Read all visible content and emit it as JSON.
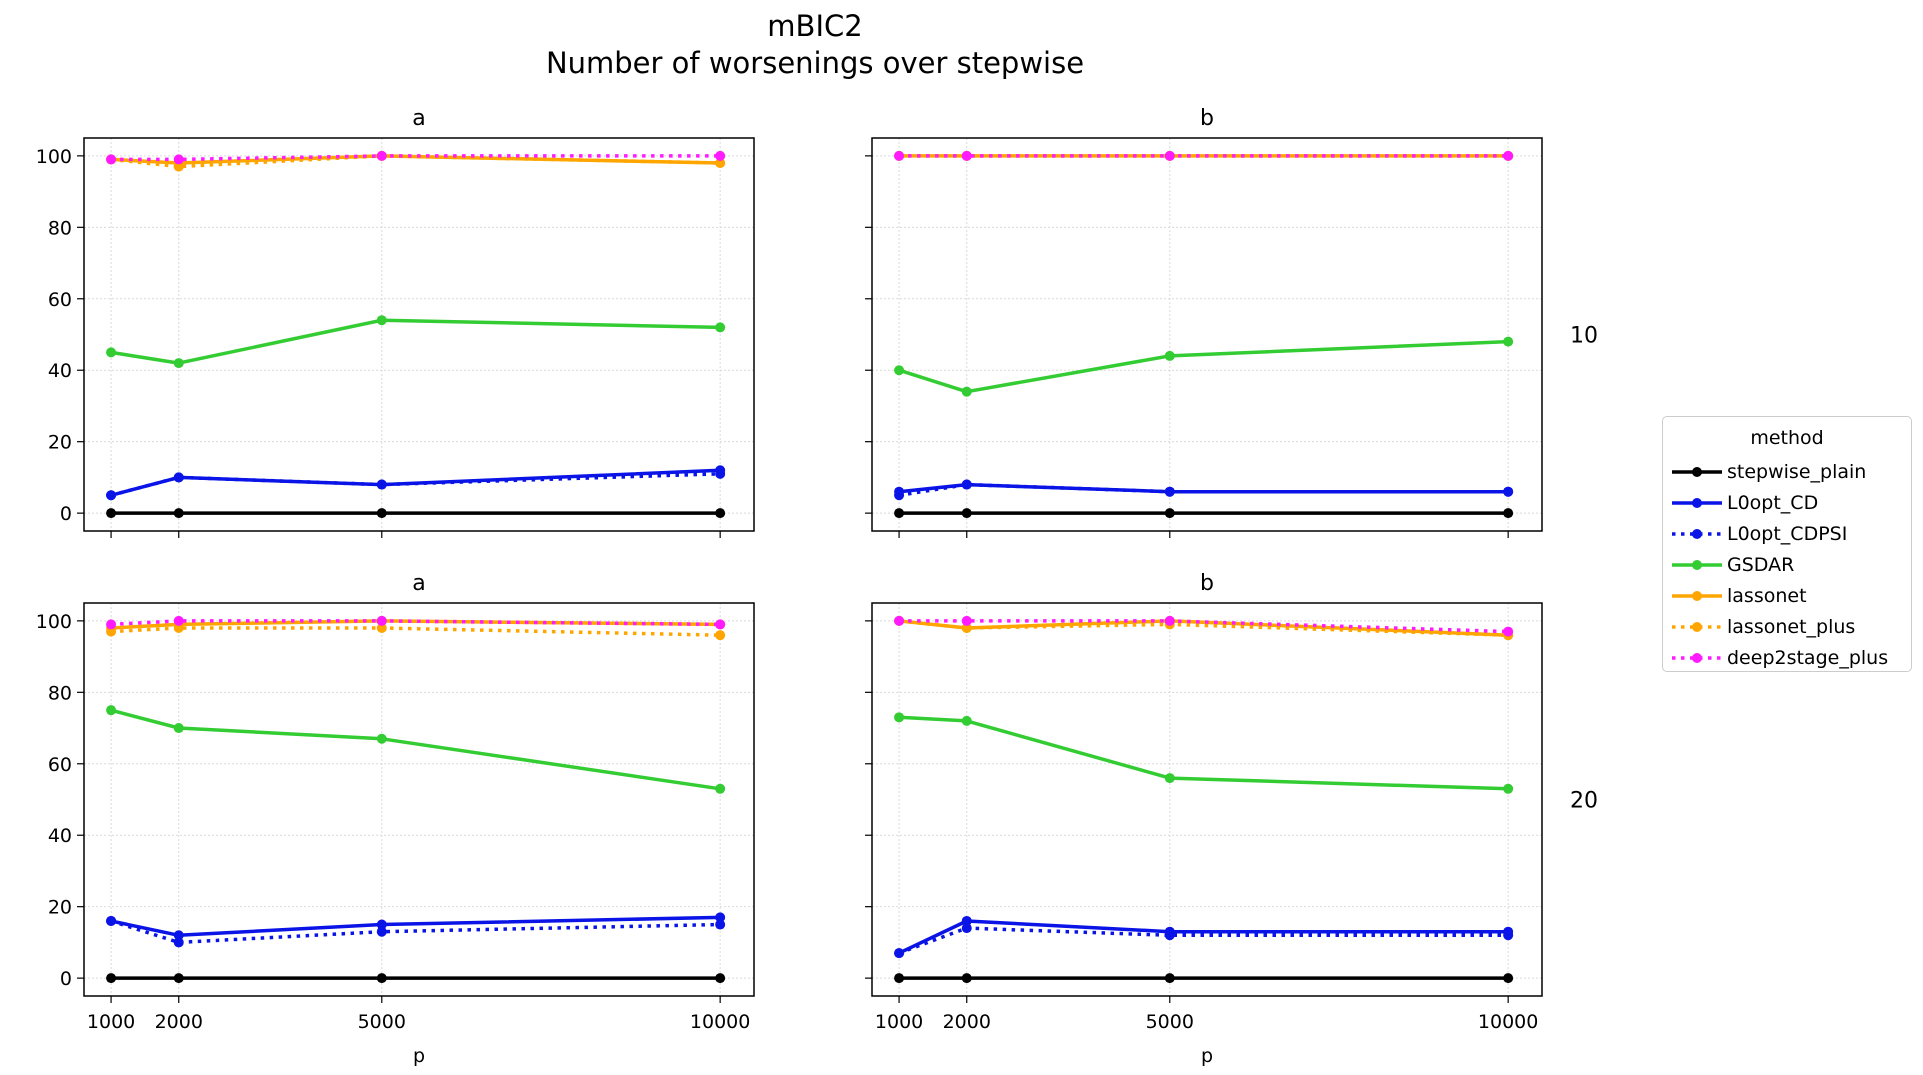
{
  "figure": {
    "title_line1": "mBIC2",
    "title_line2": "Number of worsenings over stepwise"
  },
  "colors": {
    "stepwise_plain": "#000000",
    "L0opt_CD": "#0a14e6",
    "L0opt_CDPSI": "#0a14e6",
    "GSDAR": "#33cc33",
    "lassonet": "#ffa500",
    "lassonet_plus": "#ffa500",
    "deep2stage_plus": "#ff1aff"
  },
  "legend": {
    "title": "method",
    "items": [
      {
        "label": "stepwise_plain",
        "style": "solid"
      },
      {
        "label": "L0opt_CD",
        "style": "solid"
      },
      {
        "label": "L0opt_CDPSI",
        "style": "dotted"
      },
      {
        "label": "GSDAR",
        "style": "solid"
      },
      {
        "label": "lassonet",
        "style": "solid"
      },
      {
        "label": "lassonet_plus",
        "style": "dotted"
      },
      {
        "label": "deep2stage_plus",
        "style": "dotted"
      }
    ]
  },
  "chart_data": [
    {
      "type": "line",
      "title": "a",
      "row_label": "10",
      "xlabel": "",
      "ylabel": "",
      "x": [
        1000,
        2000,
        5000,
        10000
      ],
      "xlim": [
        600,
        10500
      ],
      "ylim": [
        -5,
        105
      ],
      "yticks": [
        0,
        20,
        40,
        60,
        80,
        100
      ],
      "grid": true,
      "series": [
        {
          "name": "stepwise_plain",
          "style": "solid",
          "values": [
            0,
            0,
            0,
            0
          ]
        },
        {
          "name": "L0opt_CD",
          "style": "solid",
          "values": [
            5,
            10,
            8,
            12
          ]
        },
        {
          "name": "L0opt_CDPSI",
          "style": "dotted",
          "values": [
            5,
            10,
            8,
            11
          ]
        },
        {
          "name": "GSDAR",
          "style": "solid",
          "values": [
            45,
            42,
            54,
            52
          ]
        },
        {
          "name": "lassonet",
          "style": "solid",
          "values": [
            99,
            98,
            100,
            98
          ]
        },
        {
          "name": "lassonet_plus",
          "style": "dotted",
          "values": [
            99,
            97,
            100,
            98
          ]
        },
        {
          "name": "deep2stage_plus",
          "style": "dotted",
          "values": [
            99,
            99,
            100,
            100
          ]
        }
      ]
    },
    {
      "type": "line",
      "title": "b",
      "row_label": "10",
      "xlabel": "",
      "ylabel": "",
      "x": [
        1000,
        2000,
        5000,
        10000
      ],
      "xlim": [
        600,
        10500
      ],
      "ylim": [
        -5,
        105
      ],
      "yticks": [
        0,
        20,
        40,
        60,
        80,
        100
      ],
      "grid": true,
      "series": [
        {
          "name": "stepwise_plain",
          "style": "solid",
          "values": [
            0,
            0,
            0,
            0
          ]
        },
        {
          "name": "L0opt_CD",
          "style": "solid",
          "values": [
            6,
            8,
            6,
            6
          ]
        },
        {
          "name": "L0opt_CDPSI",
          "style": "dotted",
          "values": [
            5,
            8,
            6,
            6
          ]
        },
        {
          "name": "GSDAR",
          "style": "solid",
          "values": [
            40,
            34,
            44,
            48
          ]
        },
        {
          "name": "lassonet",
          "style": "solid",
          "values": [
            100,
            100,
            100,
            100
          ]
        },
        {
          "name": "lassonet_plus",
          "style": "dotted",
          "values": [
            100,
            100,
            100,
            100
          ]
        },
        {
          "name": "deep2stage_plus",
          "style": "dotted",
          "values": [
            100,
            100,
            100,
            100
          ]
        }
      ]
    },
    {
      "type": "line",
      "title": "a",
      "row_label": "20",
      "xlabel": "p",
      "ylabel": "",
      "x": [
        1000,
        2000,
        5000,
        10000
      ],
      "xlim": [
        600,
        10500
      ],
      "ylim": [
        -5,
        105
      ],
      "yticks": [
        0,
        20,
        40,
        60,
        80,
        100
      ],
      "grid": true,
      "series": [
        {
          "name": "stepwise_plain",
          "style": "solid",
          "values": [
            0,
            0,
            0,
            0
          ]
        },
        {
          "name": "L0opt_CD",
          "style": "solid",
          "values": [
            16,
            12,
            15,
            17
          ]
        },
        {
          "name": "L0opt_CDPSI",
          "style": "dotted",
          "values": [
            16,
            10,
            13,
            15
          ]
        },
        {
          "name": "GSDAR",
          "style": "solid",
          "values": [
            75,
            70,
            67,
            53
          ]
        },
        {
          "name": "lassonet",
          "style": "solid",
          "values": [
            98,
            99,
            100,
            99
          ]
        },
        {
          "name": "lassonet_plus",
          "style": "dotted",
          "values": [
            97,
            98,
            98,
            96
          ]
        },
        {
          "name": "deep2stage_plus",
          "style": "dotted",
          "values": [
            99,
            100,
            100,
            99
          ]
        }
      ]
    },
    {
      "type": "line",
      "title": "b",
      "row_label": "20",
      "xlabel": "p",
      "ylabel": "",
      "x": [
        1000,
        2000,
        5000,
        10000
      ],
      "xlim": [
        600,
        10500
      ],
      "ylim": [
        -5,
        105
      ],
      "yticks": [
        0,
        20,
        40,
        60,
        80,
        100
      ],
      "grid": true,
      "series": [
        {
          "name": "stepwise_plain",
          "style": "solid",
          "values": [
            0,
            0,
            0,
            0
          ]
        },
        {
          "name": "L0opt_CD",
          "style": "solid",
          "values": [
            7,
            16,
            13,
            13
          ]
        },
        {
          "name": "L0opt_CDPSI",
          "style": "dotted",
          "values": [
            7,
            14,
            12,
            12
          ]
        },
        {
          "name": "GSDAR",
          "style": "solid",
          "values": [
            73,
            72,
            56,
            53
          ]
        },
        {
          "name": "lassonet",
          "style": "solid",
          "values": [
            100,
            98,
            100,
            96
          ]
        },
        {
          "name": "lassonet_plus",
          "style": "dotted",
          "values": [
            100,
            98,
            99,
            96
          ]
        },
        {
          "name": "deep2stage_plus",
          "style": "dotted",
          "values": [
            100,
            100,
            100,
            97
          ]
        }
      ]
    }
  ]
}
